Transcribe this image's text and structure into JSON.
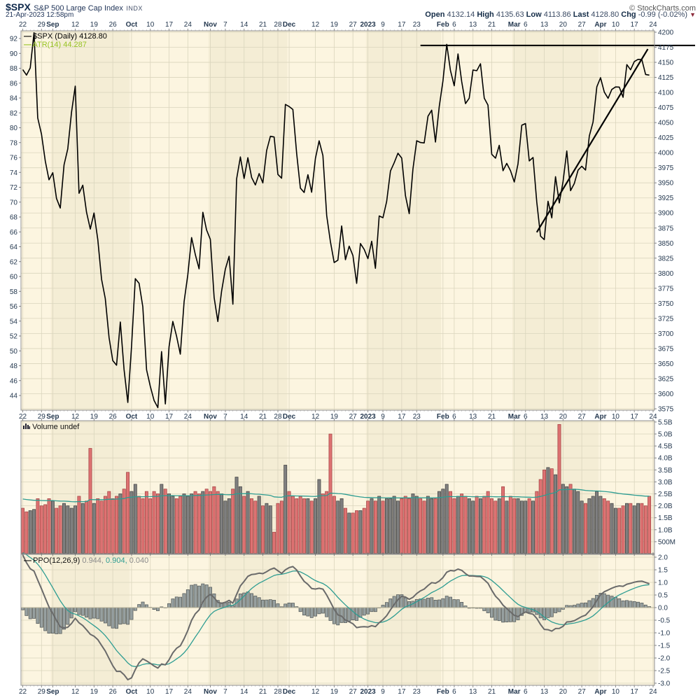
{
  "header": {
    "symbol": "$SPX",
    "title": "S&P 500 Large Cap Index",
    "exchange": "INDX",
    "datetime": "21-Apr-2023 12:58pm",
    "copyright": "© StockCharts.com",
    "quote": {
      "open_label": "Open",
      "open": "4132.14",
      "high_label": "High",
      "high": "4135.63",
      "low_label": "Low",
      "low": "4113.86",
      "last_label": "Last",
      "last": "4128.80",
      "chg_label": "Chg",
      "chg": "-0.99 (-0.02%)"
    }
  },
  "legends": {
    "price_label": "$SPX (Daily)",
    "price_value": "4128.80",
    "atr_label": "ATR(14)",
    "atr_value": "44.287",
    "volume_label": "Volume",
    "volume_value": "undef",
    "ppo_label": "PPO(12,26,9)",
    "ppo_v1": "0.944,",
    "ppo_v2": "0.904,",
    "ppo_v3": "0.040"
  },
  "colors": {
    "panel_bg": "#fcf5e0",
    "band_bg": "#f4edd5",
    "grid": "#dad5bd",
    "border": "#8f8f8f",
    "axis_text": "#24384f",
    "price_line": "#000000",
    "vol_up": "#7f7f7f",
    "vol_up_border": "#3f3f3f",
    "vol_down": "#dd7272",
    "vol_down_border": "#a04040",
    "teal": "#2e9d92",
    "ppo_line": "#6a6a6a",
    "hist_fill": "#97a0a0",
    "hist_border": "#4e5454",
    "annotation": "#000000",
    "chg_arrow": "#8b2a3a",
    "atr_legend": "#97c324"
  },
  "axes": {
    "date_ticks": [
      [
        "22",
        0,
        0
      ],
      [
        "29",
        5,
        0
      ],
      [
        "Sep",
        8,
        1
      ],
      [
        "12",
        14,
        0
      ],
      [
        "19",
        19,
        0
      ],
      [
        "26",
        24,
        0
      ],
      [
        "Oct",
        29,
        1
      ],
      [
        "10",
        34,
        0
      ],
      [
        "17",
        39,
        0
      ],
      [
        "24",
        44,
        0
      ],
      [
        "Nov",
        50,
        1
      ],
      [
        "7",
        54,
        0
      ],
      [
        "14",
        59,
        0
      ],
      [
        "21",
        64,
        0
      ],
      [
        "28",
        68,
        0
      ],
      [
        "Dec",
        71,
        1
      ],
      [
        "12",
        78,
        0
      ],
      [
        "19",
        83,
        0
      ],
      [
        "27",
        88,
        0
      ],
      [
        "2023",
        92,
        1
      ],
      [
        "9",
        96,
        0
      ],
      [
        "17",
        101,
        0
      ],
      [
        "23",
        105,
        0
      ],
      [
        "Feb",
        112,
        1
      ],
      [
        "6",
        115,
        0
      ],
      [
        "13",
        120,
        0
      ],
      [
        "21",
        125,
        0
      ],
      [
        "Mar",
        131,
        1
      ],
      [
        "6",
        134,
        0
      ],
      [
        "13",
        139,
        0
      ],
      [
        "20",
        144,
        0
      ],
      [
        "27",
        149,
        0
      ],
      [
        "Apr",
        154,
        1
      ],
      [
        "10",
        158,
        0
      ],
      [
        "17",
        163,
        0
      ],
      [
        "24",
        168,
        0
      ]
    ],
    "price_axis": {
      "max": 4200,
      "min": 3575,
      "step": 25
    },
    "atr_axis": {
      "max": 92,
      "min": 44,
      "step": 2
    },
    "volume_ticks": [
      [
        "5.5B",
        5.5
      ],
      [
        "5.0B",
        5.0
      ],
      [
        "4.5B",
        4.5
      ],
      [
        "4.0B",
        4.0
      ],
      [
        "3.5B",
        3.5
      ],
      [
        "3.0B",
        3.0
      ],
      [
        "2.5B",
        2.5
      ],
      [
        "2.0B",
        2.0
      ],
      [
        "1.5B",
        1.5
      ],
      [
        "1.0B",
        1.0
      ],
      [
        "500M",
        0.5
      ]
    ],
    "ppo_axis": {
      "max": 2.0,
      "min": -3.0,
      "step": 0.5
    },
    "month_bands": [
      [
        8,
        29
      ],
      [
        50,
        71
      ],
      [
        92,
        112
      ],
      [
        131,
        154
      ]
    ]
  },
  "chart_data": [
    {
      "type": "line",
      "panel": "price",
      "title": "$SPX Daily close",
      "x_range": "22-Aug-2022 to 24-Apr-2023 (daily)",
      "ylim": [
        3575,
        4200
      ],
      "closes": [
        4137.99,
        4128.73,
        4140.77,
        4199.12,
        4057.66,
        4030.61,
        3986.16,
        3955.0,
        3966.85,
        3924.26,
        3908.19,
        3979.87,
        4006.18,
        4067.36,
        4110.41,
        3932.69,
        3946.01,
        3901.35,
        3873.33,
        3899.89,
        3855.93,
        3789.93,
        3757.99,
        3693.23,
        3655.04,
        3647.29,
        3719.04,
        3640.47,
        3585.62,
        3678.43,
        3790.93,
        3783.28,
        3744.52,
        3639.66,
        3612.39,
        3588.84,
        3577.03,
        3669.91,
        3583.07,
        3677.95,
        3719.98,
        3695.16,
        3665.78,
        3752.75,
        3797.34,
        3859.11,
        3830.6,
        3807.3,
        3901.06,
        3871.98,
        3856.1,
        3759.69,
        3719.89,
        3770.55,
        3806.8,
        3828.11,
        3748.57,
        3956.37,
        3992.93,
        3957.25,
        3991.73,
        3958.79,
        3946.56,
        3965.34,
        3949.94,
        4003.58,
        4027.26,
        4026.12,
        3963.94,
        3957.63,
        4080.11,
        4076.57,
        4071.7,
        3998.84,
        3941.26,
        3933.92,
        3963.51,
        3934.38,
        3990.56,
        4019.65,
        3995.32,
        3895.75,
        3852.36,
        3817.66,
        3821.62,
        3878.44,
        3822.39,
        3844.82,
        3829.25,
        3783.22,
        3849.28,
        3839.5,
        3824.14,
        3852.97,
        3808.1,
        3895.08,
        3892.09,
        3919.25,
        3969.61,
        3983.17,
        3999.09,
        3990.97,
        3928.86,
        3898.85,
        3972.61,
        4019.81,
        4016.95,
        4016.22,
        4060.43,
        4070.56,
        4017.77,
        4076.6,
        4119.21,
        4179.76,
        4136.48,
        4111.08,
        4164.0,
        4117.86,
        4081.5,
        4090.46,
        4137.29,
        4136.13,
        4147.6,
        4090.41,
        4079.09,
        3997.34,
        3991.05,
        4012.32,
        3970.04,
        3982.24,
        3970.15,
        3951.39,
        3981.35,
        4045.64,
        4048.42,
        3986.37,
        3992.01,
        3918.32,
        3861.59,
        3855.76,
        3919.29,
        3891.93,
        3960.28,
        3916.64,
        3951.57,
        4002.87,
        3936.97,
        3948.72,
        3970.99,
        3977.53,
        3971.27,
        4027.81,
        4050.83,
        4109.31,
        4124.51,
        4100.6,
        4090.38,
        4105.02,
        4109.11,
        4108.94,
        4091.95,
        4146.22,
        4137.64,
        4151.32,
        4154.87,
        4154.52,
        4129.79,
        4128.8
      ]
    },
    {
      "type": "bar",
      "panel": "volume",
      "title": "Volume",
      "unit": "billions of shares",
      "ylim": [
        0,
        5.5
      ],
      "color_rule": "red if close down vs prior day, gray if up",
      "ma_seed": 2.3,
      "ma_period": 50,
      "values": [
        1.9,
        1.75,
        1.8,
        1.85,
        2.3,
        2.0,
        2.05,
        2.3,
        2.2,
        1.9,
        2.0,
        2.1,
        2.0,
        1.9,
        2.0,
        2.4,
        2.1,
        2.2,
        4.4,
        2.1,
        2.3,
        2.2,
        2.4,
        2.6,
        2.3,
        2.4,
        2.5,
        2.7,
        3.4,
        2.6,
        2.9,
        2.4,
        2.3,
        2.6,
        2.3,
        2.6,
        2.5,
        2.9,
        2.7,
        2.5,
        2.4,
        2.3,
        2.4,
        2.5,
        2.4,
        2.5,
        2.6,
        2.5,
        2.6,
        2.7,
        2.6,
        2.8,
        2.6,
        2.5,
        2.2,
        2.3,
        2.7,
        3.2,
        2.8,
        2.4,
        2.6,
        2.3,
        2.2,
        2.4,
        2.0,
        2.1,
        2.0,
        0.9,
        2.1,
        2.2,
        3.7,
        2.6,
        2.4,
        2.3,
        2.4,
        2.3,
        2.3,
        2.2,
        2.3,
        3.1,
        2.5,
        2.6,
        5.0,
        2.4,
        2.2,
        2.3,
        1.9,
        1.7,
        1.7,
        1.8,
        1.8,
        1.9,
        2.2,
        2.3,
        2.2,
        2.4,
        2.2,
        2.3,
        2.3,
        2.4,
        2.2,
        2.3,
        2.4,
        2.3,
        2.5,
        2.4,
        2.3,
        2.2,
        2.4,
        2.3,
        2.3,
        2.6,
        2.7,
        2.9,
        2.6,
        2.3,
        2.4,
        2.5,
        2.4,
        2.3,
        2.2,
        2.4,
        2.3,
        2.4,
        2.6,
        2.3,
        2.2,
        2.3,
        2.8,
        2.2,
        2.4,
        2.3,
        2.3,
        2.2,
        2.2,
        2.3,
        2.2,
        2.6,
        3.1,
        3.5,
        3.6,
        3.55,
        3.3,
        5.4,
        2.9,
        2.8,
        2.9,
        2.7,
        2.6,
        2.2,
        2.1,
        2.3,
        2.4,
        2.6,
        2.4,
        2.3,
        2.2,
        2.1,
        1.9,
        1.9,
        2.0,
        2.1,
        2.1,
        2.0,
        2.1,
        2.1,
        2.0,
        2.4
      ]
    },
    {
      "type": "line+bar",
      "panel": "ppo",
      "title": "PPO(12,26,9)",
      "ylim": [
        -3.0,
        2.0
      ],
      "params": {
        "fast": 12,
        "slow": 26,
        "signal": 9
      },
      "seeds": {
        "ema12": 4220,
        "ema26": 4120,
        "signal": 2.2
      },
      "current": {
        "ppo": 0.944,
        "signal": 0.904,
        "histogram": 0.04
      },
      "source": "computed from price closes"
    }
  ],
  "annotations": [
    {
      "type": "resistance_hline",
      "from_index": 106,
      "price": 4178,
      "extend_to_x": 993
    },
    {
      "type": "trendline",
      "from": [
        137,
        3868
      ],
      "to": [
        166.6,
        4172
      ]
    }
  ]
}
